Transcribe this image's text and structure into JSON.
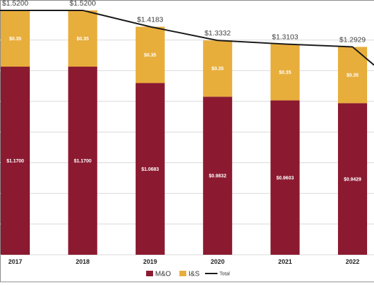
{
  "chart_data": {
    "type": "bar",
    "stacked": true,
    "categories": [
      "2017",
      "2018",
      "2019",
      "2020",
      "2021",
      "2022"
    ],
    "series": [
      {
        "name": "M&O",
        "color": "#8b1a31",
        "values": [
          1.17,
          1.17,
          1.0683,
          0.9832,
          0.9603,
          0.9429
        ],
        "labels": [
          "$1.1700",
          "$1.1700",
          "$1.0683",
          "$0.9832",
          "$0.9603",
          "$0.9429"
        ]
      },
      {
        "name": "I&S",
        "color": "#e8ae3c",
        "values": [
          0.35,
          0.35,
          0.35,
          0.35,
          0.35,
          0.35
        ],
        "labels": [
          "$0.35",
          "$0.35",
          "$0.35",
          "$0.35",
          "$0.35",
          "$0.35"
        ]
      }
    ],
    "total": {
      "name": "Total",
      "color": "#1a1a1a",
      "values": [
        1.52,
        1.52,
        1.4183,
        1.3332,
        1.3103,
        1.2929
      ],
      "labels": [
        "$1.5200",
        "$1.5200",
        "$1.4183",
        "$1.3332",
        "$1.3103",
        "$1.2929"
      ],
      "continues_below_right": 1.18
    },
    "ylim": [
      0,
      1.55
    ],
    "grid": true,
    "legend_position": "bottom-center",
    "title": "",
    "xlabel": "",
    "ylabel": ""
  }
}
